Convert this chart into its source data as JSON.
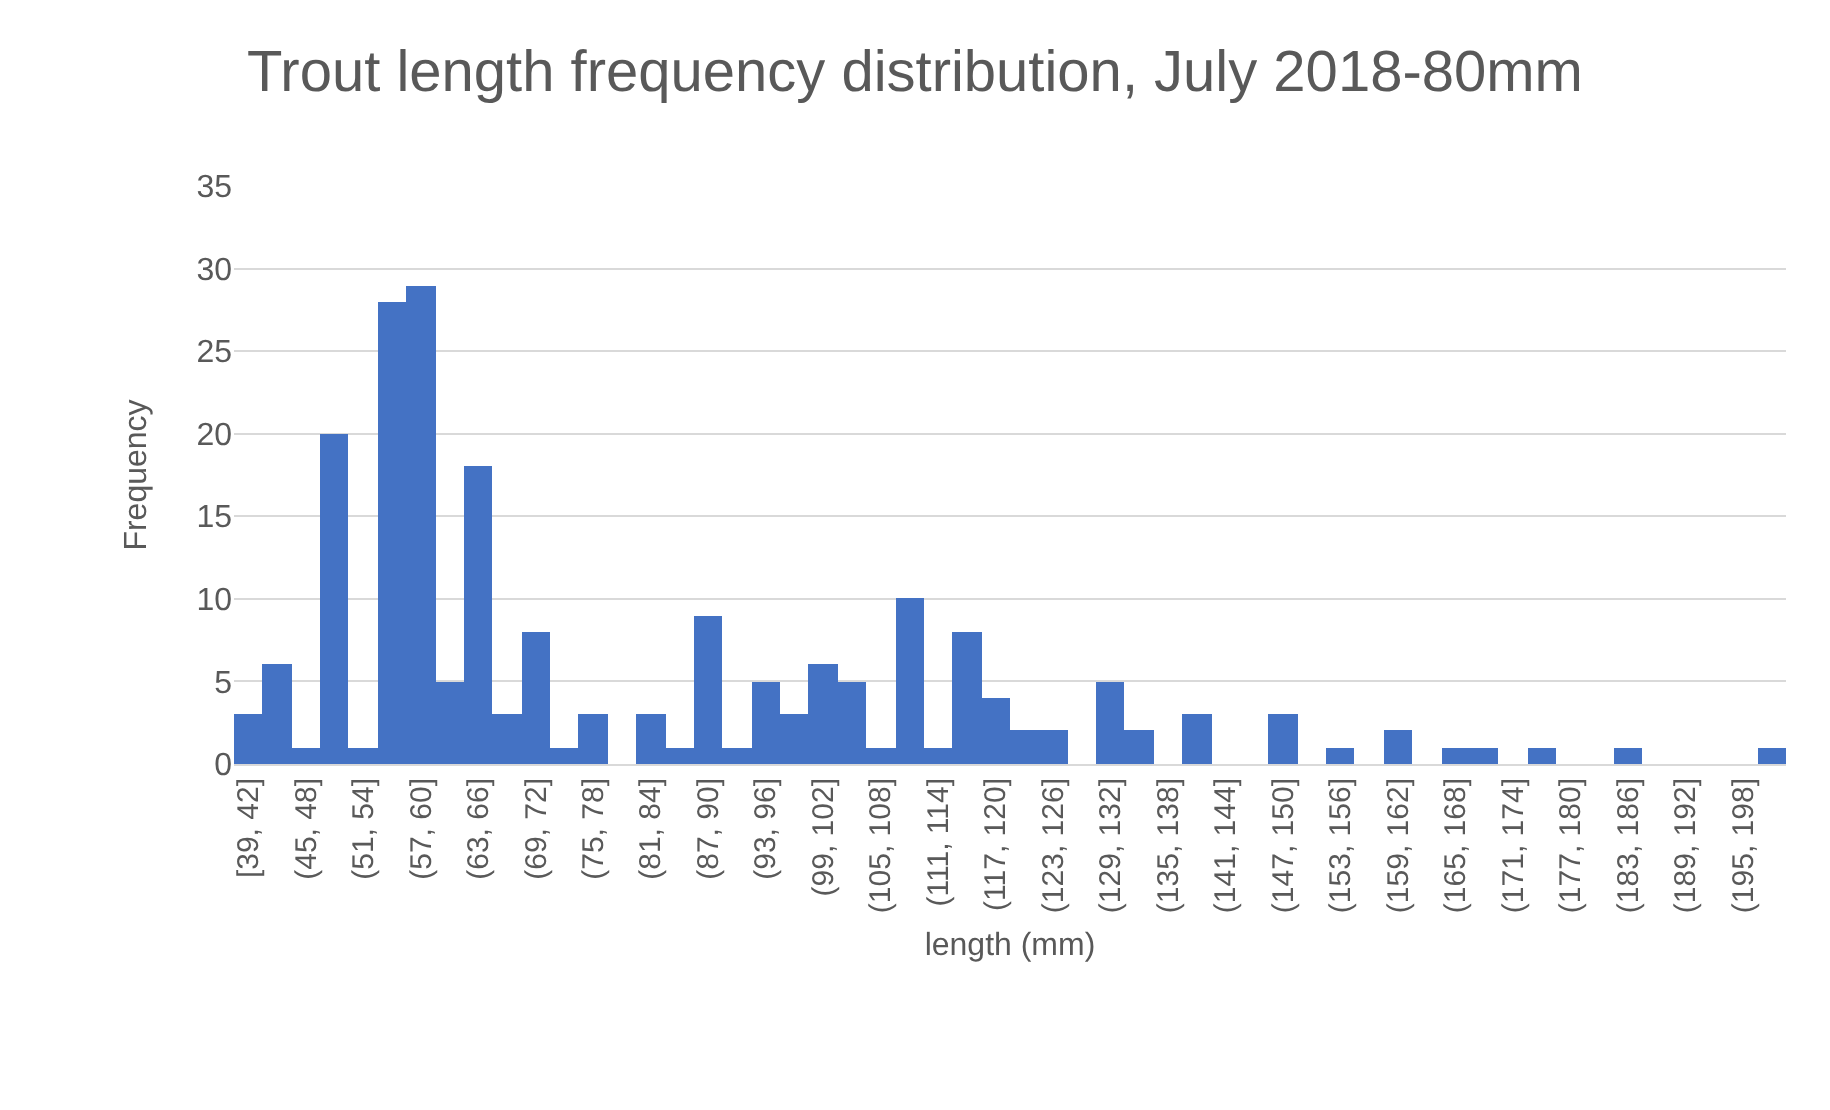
{
  "chart_data": {
    "type": "bar",
    "title": "Trout length frequency distribution, July 2018-80mm",
    "xlabel": "length (mm)",
    "ylabel": "Frequency",
    "categories": [
      "[39, 42]",
      null,
      "(45, 48]",
      null,
      "(51, 54]",
      null,
      "(57, 60]",
      null,
      "(63, 66]",
      null,
      "(69, 72]",
      null,
      "(75, 78]",
      null,
      "(81, 84]",
      null,
      "(87, 90]",
      null,
      "(93, 96]",
      null,
      "(99, 102]",
      null,
      "(105, 108]",
      null,
      "(111, 114]",
      null,
      "(117, 120]",
      null,
      "(123, 126]",
      null,
      "(129, 132]",
      null,
      "(135, 138]",
      null,
      "(141, 144]",
      null,
      "(147, 150]",
      null,
      "(153, 156]",
      null,
      "(159, 162]",
      null,
      "(165, 168]",
      null,
      "(171, 174]",
      null,
      "(177, 180]",
      null,
      "(183, 186]",
      null,
      "(189, 192]",
      null,
      "(195, 198]",
      null
    ],
    "values": [
      3,
      6,
      1,
      20,
      1,
      28,
      29,
      5,
      18,
      3,
      8,
      1,
      3,
      0,
      3,
      1,
      9,
      1,
      5,
      3,
      6,
      5,
      1,
      10,
      1,
      8,
      4,
      2,
      2,
      0,
      5,
      2,
      0,
      3,
      0,
      0,
      3,
      0,
      1,
      0,
      2,
      0,
      1,
      1,
      0,
      1,
      0,
      0,
      1,
      0,
      0,
      0,
      0,
      1
    ],
    "color": "#4472c4",
    "ylim": [
      0,
      35
    ],
    "yticks": [
      0,
      5,
      10,
      15,
      20,
      25,
      30,
      35
    ],
    "grid": "y"
  }
}
